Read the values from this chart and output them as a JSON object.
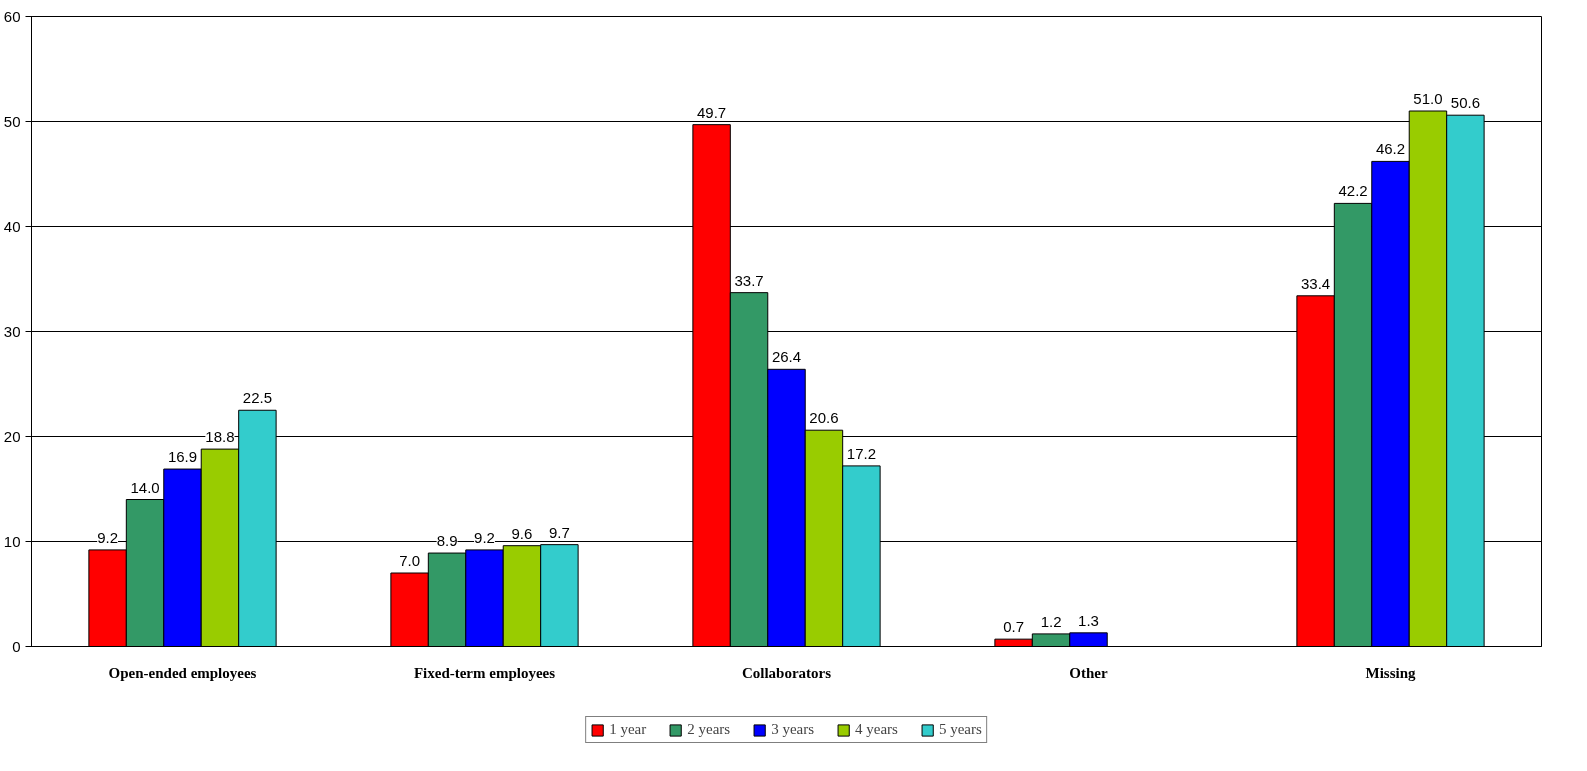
{
  "chart_data": {
    "type": "bar",
    "categories": [
      "Open-ended employees",
      "Fixed-term employees",
      "Collaborators",
      "Other",
      "Missing"
    ],
    "series": [
      {
        "name": "1 year",
        "color": "#ff0000",
        "values": [
          9.2,
          7.0,
          49.7,
          0.7,
          33.4
        ],
        "value_labels": [
          "9.2",
          "7.0",
          "49.7",
          "0.7",
          "33.4"
        ]
      },
      {
        "name": "2 years",
        "color": "#339966",
        "values": [
          14.0,
          8.9,
          33.7,
          1.2,
          42.2
        ],
        "value_labels": [
          "14.0",
          "8.9",
          "33.7",
          "1.2",
          "42.2"
        ]
      },
      {
        "name": "3 years",
        "color": "#0000ff",
        "values": [
          16.9,
          9.2,
          26.4,
          1.3,
          46.2
        ],
        "value_labels": [
          "16.9",
          "9.2",
          "26.4",
          "1.3",
          "46.2"
        ]
      },
      {
        "name": "4 years",
        "color": "#99cc00",
        "values": [
          18.8,
          9.6,
          20.6,
          null,
          51.0
        ],
        "value_labels": [
          "18.8",
          "9.6",
          "20.6",
          null,
          "51.0"
        ]
      },
      {
        "name": "5 years",
        "color": "#33cccc",
        "values": [
          22.5,
          9.7,
          17.2,
          null,
          50.6
        ],
        "value_labels": [
          "22.5",
          "9.7",
          "17.2",
          null,
          "50.6"
        ]
      }
    ],
    "ylim": [
      0,
      60
    ],
    "yticks": [
      0,
      10,
      20,
      30,
      40,
      50,
      60
    ],
    "grid": "y",
    "legend": "bottom"
  }
}
